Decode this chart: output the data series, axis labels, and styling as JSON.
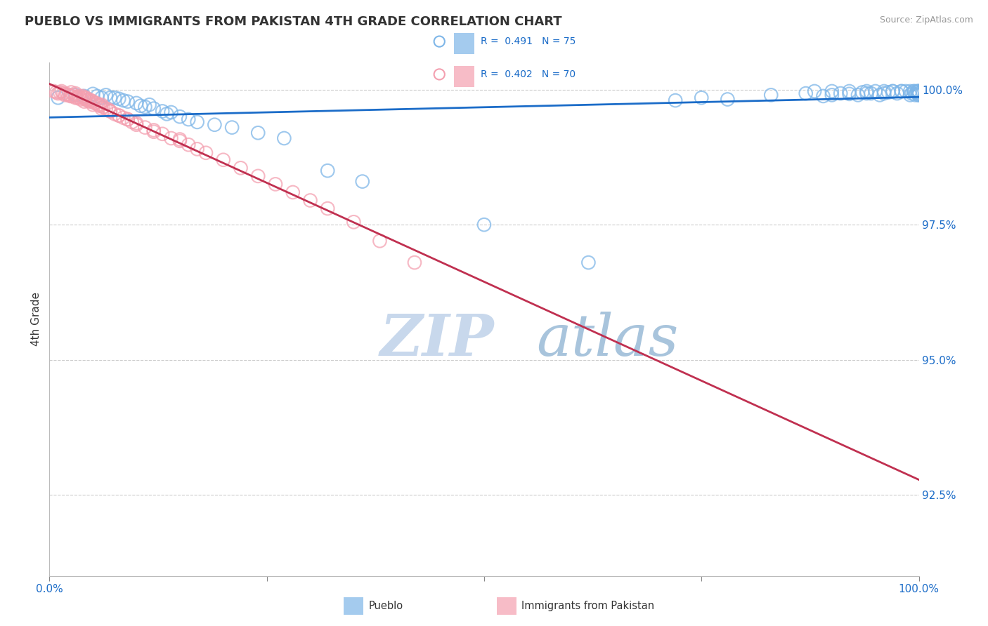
{
  "title": "PUEBLO VS IMMIGRANTS FROM PAKISTAN 4TH GRADE CORRELATION CHART",
  "source_text": "Source: ZipAtlas.com",
  "ylabel": "4th Grade",
  "xlim": [
    0.0,
    1.0
  ],
  "ylim": [
    0.91,
    1.005
  ],
  "ytick_labels": [
    "92.5%",
    "95.0%",
    "97.5%",
    "100.0%"
  ],
  "ytick_values": [
    0.925,
    0.95,
    0.975,
    1.0
  ],
  "blue_color": "#7EB6E8",
  "pink_color": "#F4A0B0",
  "trendline_blue": "#1B6CC8",
  "trendline_pink": "#C03050",
  "background_color": "#FFFFFF",
  "watermark_zip_color": "#C8D8EC",
  "watermark_atlas_color": "#A8C4DC",
  "tick_color": "#1B6CC8",
  "blue_scatter_x": [
    0.01,
    0.03,
    0.04,
    0.05,
    0.055,
    0.06,
    0.065,
    0.07,
    0.075,
    0.08,
    0.085,
    0.09,
    0.1,
    0.105,
    0.11,
    0.115,
    0.12,
    0.13,
    0.135,
    0.14,
    0.15,
    0.16,
    0.17,
    0.19,
    0.21,
    0.24,
    0.27,
    0.32,
    0.36,
    0.5,
    0.62,
    0.72,
    0.75,
    0.78,
    0.83,
    0.87,
    0.89,
    0.9,
    0.91,
    0.92,
    0.93,
    0.935,
    0.94,
    0.945,
    0.95,
    0.955,
    0.96,
    0.965,
    0.97,
    0.975,
    0.98,
    0.985,
    0.99,
    0.992,
    0.994,
    0.996,
    0.997,
    0.998,
    0.999,
    1.0,
    1.0,
    1.0,
    0.88,
    0.9,
    0.92,
    0.94,
    0.96,
    0.97,
    0.98,
    0.99,
    0.995,
    1.0,
    1.0,
    1.0
  ],
  "blue_scatter_y": [
    0.9985,
    0.999,
    0.9988,
    0.9992,
    0.9988,
    0.9985,
    0.999,
    0.9985,
    0.9985,
    0.9983,
    0.998,
    0.9978,
    0.9975,
    0.997,
    0.9968,
    0.9972,
    0.9965,
    0.996,
    0.9955,
    0.9958,
    0.995,
    0.9945,
    0.994,
    0.9935,
    0.993,
    0.992,
    0.991,
    0.985,
    0.983,
    0.975,
    0.968,
    0.998,
    0.9985,
    0.9982,
    0.999,
    0.9993,
    0.9988,
    0.999,
    0.9993,
    0.9992,
    0.999,
    0.9995,
    0.9993,
    0.9993,
    0.9997,
    0.999,
    0.9993,
    0.9995,
    0.9997,
    0.9993,
    0.9997,
    0.9997,
    0.999,
    0.9993,
    0.9997,
    0.999,
    0.9995,
    0.9997,
    0.9997,
    0.9997,
    0.9993,
    0.999,
    0.9997,
    0.9997,
    0.9997,
    0.9997,
    0.9997,
    0.9997,
    0.9997,
    0.9997,
    0.9997,
    0.9997,
    0.9993,
    0.999
  ],
  "pink_scatter_x": [
    0.005,
    0.008,
    0.01,
    0.012,
    0.014,
    0.016,
    0.018,
    0.02,
    0.022,
    0.024,
    0.025,
    0.026,
    0.028,
    0.03,
    0.032,
    0.034,
    0.035,
    0.036,
    0.038,
    0.04,
    0.041,
    0.042,
    0.044,
    0.045,
    0.046,
    0.048,
    0.05,
    0.052,
    0.054,
    0.056,
    0.058,
    0.06,
    0.062,
    0.065,
    0.068,
    0.07,
    0.075,
    0.08,
    0.085,
    0.09,
    0.095,
    0.1,
    0.11,
    0.12,
    0.13,
    0.14,
    0.15,
    0.16,
    0.17,
    0.18,
    0.2,
    0.22,
    0.24,
    0.26,
    0.28,
    0.3,
    0.32,
    0.35,
    0.38,
    0.42,
    0.03,
    0.04,
    0.05,
    0.06,
    0.07,
    0.08,
    0.09,
    0.1,
    0.12,
    0.15
  ],
  "pink_scatter_y": [
    0.9997,
    0.9995,
    0.9993,
    0.9995,
    0.9997,
    0.9993,
    0.999,
    0.9992,
    0.999,
    0.9988,
    0.9995,
    0.9988,
    0.999,
    0.9993,
    0.9985,
    0.9988,
    0.9985,
    0.9982,
    0.9988,
    0.9985,
    0.9982,
    0.9985,
    0.998,
    0.9982,
    0.9978,
    0.998,
    0.9978,
    0.9975,
    0.9975,
    0.9972,
    0.997,
    0.9972,
    0.9968,
    0.9965,
    0.9963,
    0.996,
    0.9955,
    0.9952,
    0.9948,
    0.9945,
    0.994,
    0.9938,
    0.993,
    0.9925,
    0.9918,
    0.991,
    0.9905,
    0.9898,
    0.989,
    0.9883,
    0.987,
    0.9855,
    0.984,
    0.9825,
    0.981,
    0.9795,
    0.978,
    0.9755,
    0.972,
    0.968,
    0.9985,
    0.9978,
    0.9972,
    0.9965,
    0.996,
    0.9952,
    0.9945,
    0.9935,
    0.9922,
    0.9908
  ]
}
